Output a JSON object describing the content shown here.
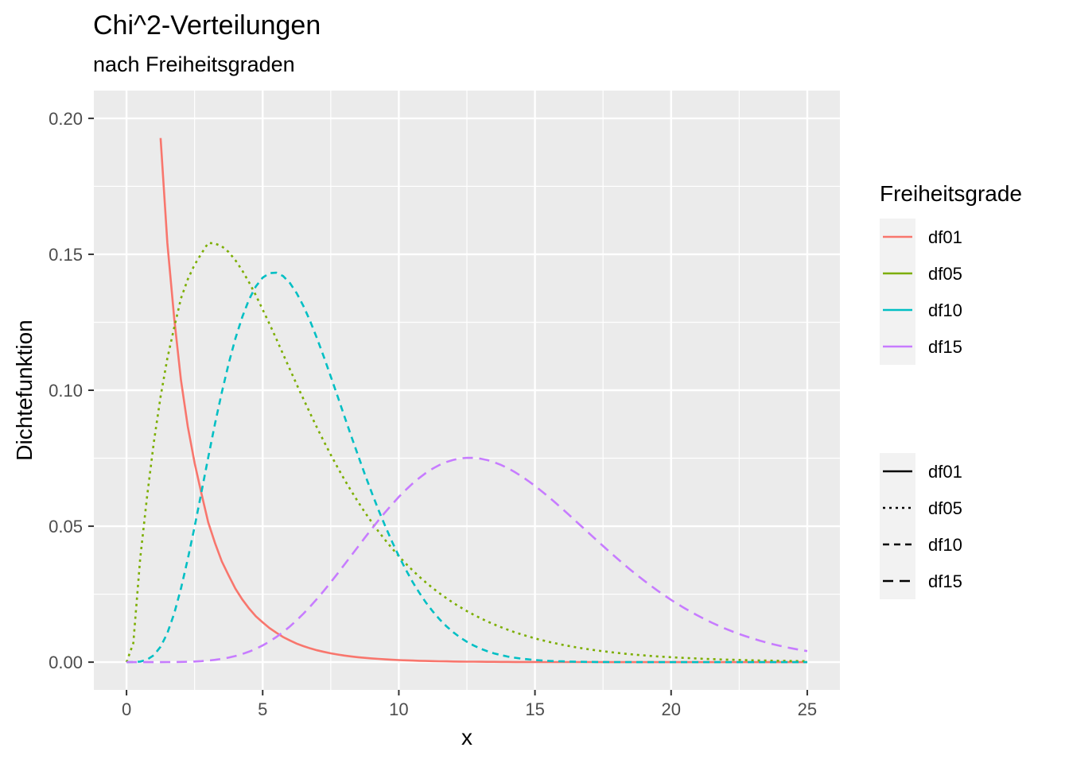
{
  "chart_data": {
    "type": "line",
    "title": "Chi^2-Verteilungen",
    "subtitle": "nach Freiheitsgraden",
    "xlabel": "x",
    "ylabel": "Dichtefunktion",
    "xlim": [
      -1.2,
      26.2
    ],
    "ylim": [
      -0.0102,
      0.2102
    ],
    "x_ticks": [
      0,
      5,
      10,
      15,
      20,
      25
    ],
    "x_tick_labels": [
      "0",
      "5",
      "10",
      "15",
      "20",
      "25"
    ],
    "y_ticks": [
      0.0,
      0.05,
      0.1,
      0.15,
      0.2
    ],
    "y_tick_labels": [
      "0.00",
      "0.05",
      "0.10",
      "0.15",
      "0.20"
    ],
    "grid": true,
    "panel_background": "#ebebeb",
    "legend_position": "right",
    "legend_color_title": "Freiheitsgrade",
    "x": [
      0,
      0.25,
      0.5,
      0.75,
      1,
      1.25,
      1.5,
      1.75,
      2,
      2.25,
      2.5,
      2.75,
      3,
      3.25,
      3.5,
      3.75,
      4,
      4.25,
      4.5,
      4.75,
      5,
      5.25,
      5.5,
      5.75,
      6,
      6.25,
      6.5,
      6.75,
      7,
      7.25,
      7.5,
      7.75,
      8,
      8.25,
      8.5,
      8.75,
      9,
      9.25,
      9.5,
      9.75,
      10,
      10.25,
      10.5,
      10.75,
      11,
      11.25,
      11.5,
      11.75,
      12,
      12.25,
      12.5,
      12.75,
      13,
      13.25,
      13.5,
      13.75,
      14,
      14.25,
      14.5,
      14.75,
      15,
      15.25,
      15.5,
      15.75,
      16,
      16.25,
      16.5,
      16.75,
      17,
      17.25,
      17.5,
      17.75,
      18,
      18.25,
      18.5,
      18.75,
      19,
      19.25,
      19.5,
      19.75,
      20,
      20.25,
      20.5,
      20.75,
      21,
      21.25,
      21.5,
      21.75,
      22,
      22.25,
      22.5,
      22.75,
      23,
      23.25,
      23.5,
      23.75,
      24,
      24.25,
      24.5,
      24.75,
      25
    ],
    "series": [
      {
        "name": "df01",
        "color": "#f8766d",
        "linetype": "solid",
        "values": [
          null,
          null,
          null,
          null,
          null,
          0.19275,
          0.15418,
          0.12655,
          0.10378,
          0.08664,
          0.07321,
          0.06208,
          0.05139,
          0.04381,
          0.03703,
          0.03186,
          0.027,
          0.02307,
          0.01976,
          0.01683,
          0.01465,
          0.01255,
          0.01082,
          0.00925,
          0.00798,
          0.00681,
          0.00589,
          0.00507,
          0.00437,
          0.00378,
          0.00326,
          0.00282,
          0.00244,
          0.0021,
          0.00182,
          0.00158,
          0.00137,
          0.00119,
          0.00103,
          0.00089,
          0.00077,
          0.00067,
          0.00058,
          0.00051,
          0.00044,
          0.00038,
          0.00033,
          0.00029,
          0.00025,
          0.00022,
          0.00019,
          0.00017,
          0.00015,
          0.00013,
          0.00011,
          0.0001,
          8e-05,
          7e-05,
          6e-05,
          6e-05,
          5e-05,
          4e-05,
          4e-05,
          3e-05,
          3e-05,
          3e-05,
          2e-05,
          2e-05,
          2e-05,
          2e-05,
          1e-05,
          1e-05,
          1e-05,
          1e-05,
          1e-05,
          1e-05,
          1e-05,
          1e-05,
          0,
          0,
          0,
          0,
          0,
          0,
          0,
          0,
          0,
          0,
          0,
          0,
          0,
          0,
          0,
          0,
          0,
          0,
          0,
          0,
          0,
          0,
          0
        ]
      },
      {
        "name": "df05",
        "color": "#7cae00",
        "linetype": "dotted",
        "values": [
          0,
          0.00699,
          0.03795,
          0.06063,
          0.08066,
          0.09765,
          0.11171,
          0.12303,
          0.13377,
          0.14082,
          0.14619,
          0.15024,
          0.15418,
          0.15396,
          0.15294,
          0.15082,
          0.14779,
          0.14403,
          0.13969,
          0.1349,
          0.12971,
          0.1244,
          0.11889,
          0.11328,
          0.10769,
          0.10214,
          0.0967,
          0.09135,
          0.08615,
          0.08113,
          0.0763,
          0.07165,
          0.06721,
          0.063,
          0.05898,
          0.05517,
          0.05153,
          0.04812,
          0.04489,
          0.04183,
          0.03899,
          0.03632,
          0.03381,
          0.03144,
          0.02926,
          0.02722,
          0.02528,
          0.02349,
          0.02181,
          0.02025,
          0.01878,
          0.01742,
          0.01616,
          0.01498,
          0.01389,
          0.01286,
          0.01192,
          0.01103,
          0.01022,
          0.00946,
          0.00875,
          0.0081,
          0.00749,
          0.00693,
          0.00641,
          0.00593,
          0.00548,
          0.00506,
          0.00468,
          0.00433,
          0.004,
          0.0037,
          0.00341,
          0.00315,
          0.00291,
          0.00269,
          0.00248,
          0.00229,
          0.00212,
          0.00195,
          0.0018,
          0.00166,
          0.00154,
          0.00142,
          0.00131,
          0.00121,
          0.00111,
          0.00103,
          0.00095,
          0.00087,
          0.00081,
          0.00074,
          0.00068,
          0.00063,
          0.00058,
          0.00054,
          0.00049,
          0.00046,
          0.00042,
          0.00039,
          0.00036
        ]
      },
      {
        "name": "df10",
        "color": "#00bfc4",
        "linetype": "dashed",
        "values": [
          0,
          2e-05,
          0.00021,
          0.0009,
          0.00253,
          0.00566,
          0.01067,
          0.01785,
          0.02707,
          0.03793,
          0.04984,
          0.06245,
          0.07529,
          0.08769,
          0.09923,
          0.10981,
          0.11909,
          0.12696,
          0.13338,
          0.1382,
          0.14139,
          0.14306,
          0.14322,
          0.142,
          0.13944,
          0.1357,
          0.13091,
          0.12526,
          0.11896,
          0.11217,
          0.10509,
          0.09782,
          0.09049,
          0.08321,
          0.07609,
          0.06917,
          0.06248,
          0.05609,
          0.05004,
          0.04433,
          0.03902,
          0.03411,
          0.02962,
          0.02555,
          0.02188,
          0.01861,
          0.0157,
          0.01318,
          0.01098,
          0.00908,
          0.00747,
          0.0061,
          0.00496,
          0.00401,
          0.00323,
          0.00259,
          0.00206,
          0.00163,
          0.00129,
          0.00101,
          0.00079,
          0.00061,
          0.00047,
          0.00036,
          0.00028,
          0.00021,
          0.00016,
          0.00012,
          9e-05,
          7e-05,
          5e-05,
          4e-05,
          3e-05,
          2e-05,
          2e-05,
          1e-05,
          1e-05,
          1e-05,
          1e-05,
          0,
          0,
          0,
          0,
          0,
          0,
          0,
          0,
          0,
          0,
          0,
          0,
          0,
          0,
          0,
          0,
          0,
          0,
          0,
          0,
          0,
          0
        ]
      },
      {
        "name": "df15",
        "color": "#c77cff",
        "linetype": "longdash",
        "values": [
          0,
          0,
          0,
          0,
          0,
          1e-05,
          2e-05,
          4e-05,
          8e-05,
          0.00014,
          0.00024,
          0.00038,
          0.00058,
          0.00085,
          0.0012,
          0.00167,
          0.00226,
          0.00298,
          0.00386,
          0.00491,
          0.00615,
          0.00759,
          0.00924,
          0.01109,
          0.01314,
          0.01541,
          0.01786,
          0.02051,
          0.02333,
          0.02629,
          0.02938,
          0.03257,
          0.03583,
          0.03913,
          0.04244,
          0.04573,
          0.04896,
          0.05211,
          0.05514,
          0.05803,
          0.06076,
          0.0633,
          0.06563,
          0.06774,
          0.0696,
          0.07121,
          0.07254,
          0.07361,
          0.0744,
          0.07492,
          0.07515,
          0.07513,
          0.07484,
          0.0743,
          0.07353,
          0.07254,
          0.07134,
          0.06995,
          0.06839,
          0.06667,
          0.06482,
          0.06285,
          0.06078,
          0.05863,
          0.05642,
          0.05416,
          0.05187,
          0.04957,
          0.04727,
          0.04498,
          0.04271,
          0.04048,
          0.03828,
          0.03613,
          0.03404,
          0.032,
          0.03004,
          0.02814,
          0.02632,
          0.02457,
          0.0229,
          0.02131,
          0.0198,
          0.01836,
          0.017,
          0.01572,
          0.0145,
          0.01336,
          0.01229,
          0.01129,
          0.01036,
          0.00949,
          0.00868,
          0.00793,
          0.00723,
          0.00659,
          0.006,
          0.00545,
          0.00494,
          0.00448,
          0.00406
        ]
      }
    ]
  }
}
